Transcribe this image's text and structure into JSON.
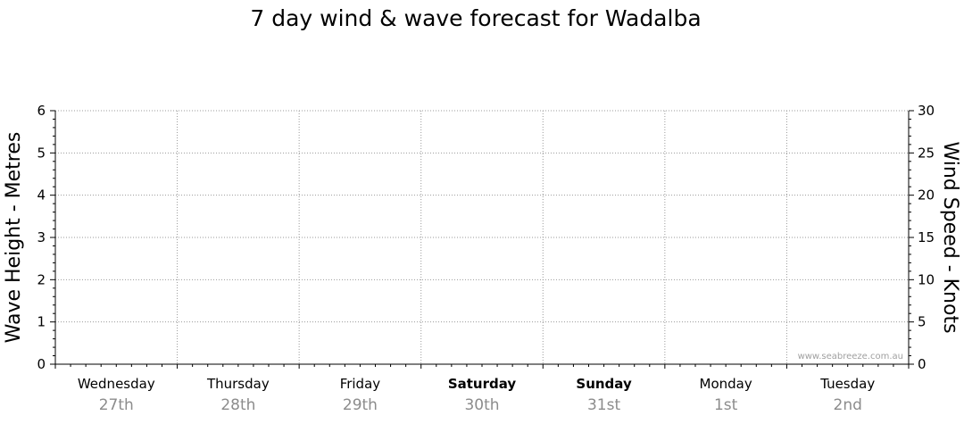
{
  "chart_data": {
    "type": "line",
    "title": "7 day wind & wave forecast for Wadalba",
    "ylabel_left": "Wave Height - Metres",
    "ylabel_right": "Wind Speed - Knots",
    "ylim_left": [
      0,
      6
    ],
    "ylim_right": [
      0,
      30
    ],
    "left_ticks": [
      "0",
      "1",
      "2",
      "3",
      "4",
      "5",
      "6"
    ],
    "right_ticks": [
      "0",
      "5",
      "10",
      "15",
      "20",
      "25",
      "30"
    ],
    "days": [
      {
        "name": "Wednesday",
        "date": "27th",
        "bold": false
      },
      {
        "name": "Thursday",
        "date": "28th",
        "bold": false
      },
      {
        "name": "Friday",
        "date": "29th",
        "bold": false
      },
      {
        "name": "Saturday",
        "date": "30th",
        "bold": true
      },
      {
        "name": "Sunday",
        "date": "31st",
        "bold": true
      },
      {
        "name": "Monday",
        "date": "1st",
        "bold": false
      },
      {
        "name": "Tuesday",
        "date": "2nd",
        "bold": false
      }
    ],
    "series": [],
    "grid": true,
    "watermark": "www.seabreeze.com.au"
  }
}
